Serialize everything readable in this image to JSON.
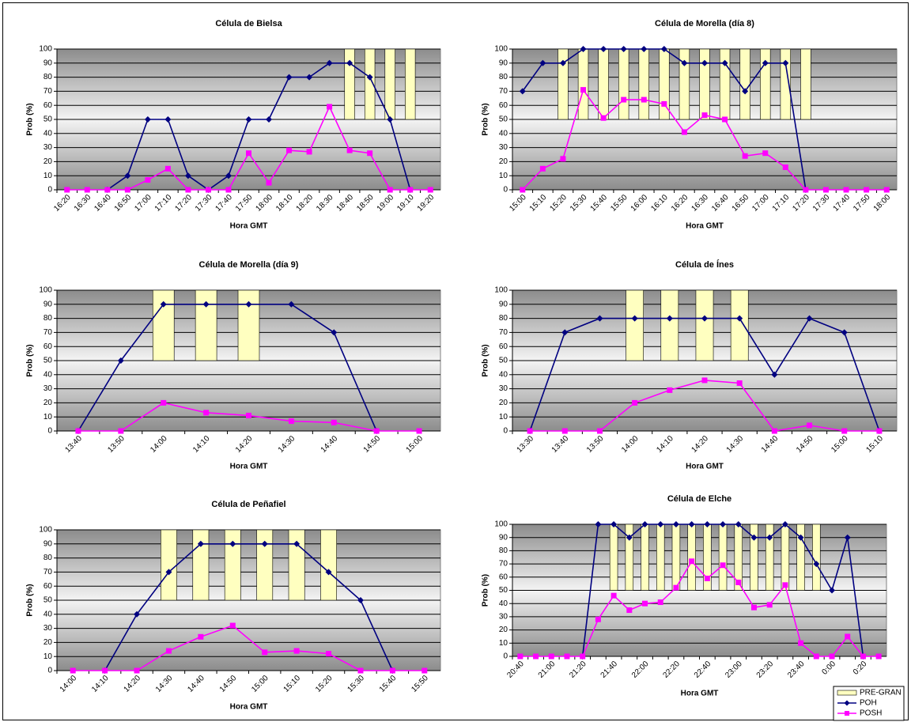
{
  "chart_data": [
    {
      "type": "line",
      "title": "Célula de Bielsa",
      "x_label": "Hora GMT",
      "y_label": "Prob (%)",
      "categories": [
        "16:20",
        "16:30",
        "16:40",
        "16:50",
        "17:00",
        "17:10",
        "17:20",
        "17:30",
        "17:40",
        "17:50",
        "18:00",
        "18:10",
        "18:20",
        "18:30",
        "18:40",
        "18:50",
        "19:00",
        "19:10",
        "19:20"
      ],
      "ylim": [
        0,
        100
      ],
      "yticks": [
        0,
        10,
        20,
        30,
        40,
        50,
        60,
        70,
        80,
        90,
        100
      ],
      "grid": true,
      "series": [
        {
          "name": "PRE-GRAN",
          "type": "bar",
          "color": "#ffffc0",
          "base": 50,
          "values": [
            null,
            null,
            null,
            null,
            null,
            null,
            null,
            null,
            null,
            null,
            null,
            null,
            null,
            null,
            100,
            100,
            100,
            100,
            null
          ]
        },
        {
          "name": "POH",
          "type": "line",
          "marker": "diamond",
          "color": "#000080",
          "values": [
            null,
            null,
            0,
            10,
            50,
            50,
            10,
            0,
            10,
            50,
            50,
            80,
            80,
            90,
            90,
            80,
            50,
            0,
            null
          ]
        },
        {
          "name": "POSH",
          "type": "line",
          "marker": "square",
          "color": "#ff00ff",
          "values": [
            0,
            0,
            0,
            0,
            7,
            15,
            0,
            0,
            0,
            26,
            5,
            28,
            27,
            59,
            28,
            26,
            0,
            0,
            0
          ]
        }
      ]
    },
    {
      "type": "line",
      "title": "Célula de Morella (día 8)",
      "x_label": "Hora GMT",
      "y_label": "Prob (%)",
      "categories": [
        "15:00",
        "15:10",
        "15:20",
        "15:30",
        "15:40",
        "15:50",
        "16:00",
        "16:10",
        "16:20",
        "16:30",
        "16:40",
        "16:50",
        "17:00",
        "17:10",
        "17:20",
        "17:30",
        "17:40",
        "17:50",
        "18:00"
      ],
      "ylim": [
        0,
        100
      ],
      "yticks": [
        0,
        10,
        20,
        30,
        40,
        50,
        60,
        70,
        80,
        90,
        100
      ],
      "grid": true,
      "series": [
        {
          "name": "PRE-GRAN",
          "type": "bar",
          "color": "#ffffc0",
          "base": 50,
          "values": [
            null,
            null,
            100,
            100,
            100,
            100,
            100,
            100,
            100,
            100,
            100,
            100,
            100,
            100,
            100,
            null,
            null,
            null,
            null
          ]
        },
        {
          "name": "POH",
          "type": "line",
          "marker": "diamond",
          "color": "#000080",
          "values": [
            70,
            90,
            90,
            100,
            100,
            100,
            100,
            100,
            90,
            90,
            90,
            70,
            90,
            90,
            0,
            null,
            null,
            null,
            null
          ]
        },
        {
          "name": "POSH",
          "type": "line",
          "marker": "square",
          "color": "#ff00ff",
          "values": [
            0,
            15,
            22,
            71,
            51,
            64,
            64,
            61,
            41,
            53,
            50,
            24,
            26,
            16,
            0,
            0,
            0,
            0,
            0
          ]
        }
      ]
    },
    {
      "type": "line",
      "title": "Célula de Morella (día 9)",
      "x_label": "Hora GMT",
      "y_label": "Prob (%)",
      "categories": [
        "13:40",
        "13:50",
        "14:00",
        "14:10",
        "14:20",
        "14:30",
        "14:40",
        "14:50",
        "15:00"
      ],
      "ylim": [
        0,
        100
      ],
      "yticks": [
        0,
        10,
        20,
        30,
        40,
        50,
        60,
        70,
        80,
        90,
        100
      ],
      "grid": true,
      "series": [
        {
          "name": "PRE-GRAN",
          "type": "bar",
          "color": "#ffffc0",
          "base": 50,
          "values": [
            null,
            null,
            100,
            100,
            100,
            null,
            null,
            null,
            null
          ]
        },
        {
          "name": "POH",
          "type": "line",
          "marker": "diamond",
          "color": "#000080",
          "values": [
            0,
            50,
            90,
            90,
            90,
            90,
            70,
            0,
            null
          ]
        },
        {
          "name": "POSH",
          "type": "line",
          "marker": "square",
          "color": "#ff00ff",
          "values": [
            0,
            0,
            20,
            13,
            11,
            7,
            6,
            0,
            0
          ]
        }
      ]
    },
    {
      "type": "line",
      "title": "Célula de Ínes",
      "x_label": "Hora GMT",
      "y_label": "Prob (%)",
      "categories": [
        "13:30",
        "13:40",
        "13:50",
        "14:00",
        "14:10",
        "14:20",
        "14:30",
        "14:40",
        "14:50",
        "15:00",
        "15:10"
      ],
      "ylim": [
        0,
        100
      ],
      "yticks": [
        0,
        10,
        20,
        30,
        40,
        50,
        60,
        70,
        80,
        90,
        100
      ],
      "grid": true,
      "series": [
        {
          "name": "PRE-GRAN",
          "type": "bar",
          "color": "#ffffc0",
          "base": 50,
          "values": [
            null,
            null,
            null,
            100,
            100,
            100,
            100,
            null,
            null,
            null,
            null
          ]
        },
        {
          "name": "POH",
          "type": "line",
          "marker": "diamond",
          "color": "#000080",
          "values": [
            0,
            70,
            80,
            80,
            80,
            80,
            80,
            40,
            80,
            70,
            0
          ]
        },
        {
          "name": "POSH",
          "type": "line",
          "marker": "square",
          "color": "#ff00ff",
          "values": [
            0,
            0,
            0,
            20,
            29,
            36,
            34,
            0,
            4,
            0,
            0
          ]
        }
      ]
    },
    {
      "type": "line",
      "title": "Célula de Peñafiel",
      "x_label": "Hora GMT",
      "y_label": "Prob (%)",
      "categories": [
        "14:00",
        "14:10",
        "14:20",
        "14:30",
        "14:40",
        "14:50",
        "15:00",
        "15:10",
        "15:20",
        "15:30",
        "15:40",
        "15:50"
      ],
      "ylim": [
        0,
        100
      ],
      "yticks": [
        0,
        10,
        20,
        30,
        40,
        50,
        60,
        70,
        80,
        90,
        100
      ],
      "grid": true,
      "series": [
        {
          "name": "PRE-GRAN",
          "type": "bar",
          "color": "#ffffc0",
          "base": 50,
          "values": [
            null,
            null,
            null,
            100,
            100,
            100,
            100,
            100,
            100,
            null,
            null,
            null
          ]
        },
        {
          "name": "POH",
          "type": "line",
          "marker": "diamond",
          "color": "#000080",
          "values": [
            null,
            0,
            40,
            70,
            90,
            90,
            90,
            90,
            70,
            50,
            0,
            null
          ]
        },
        {
          "name": "POSH",
          "type": "line",
          "marker": "square",
          "color": "#ff00ff",
          "values": [
            0,
            0,
            0,
            14,
            24,
            32,
            13,
            14,
            12,
            0,
            0,
            0
          ]
        }
      ]
    },
    {
      "type": "line",
      "title": "Célula de Elche",
      "x_label": "Hora GMT",
      "y_label": "Prob (%)",
      "categories": [
        "20:40",
        null,
        "21:00",
        null,
        "21:20",
        null,
        "21:40",
        null,
        "22:00",
        null,
        "22:20",
        null,
        "22:40",
        null,
        "23:00",
        null,
        "23:20",
        null,
        "23:40",
        null,
        "0:00",
        null,
        "0:20",
        null
      ],
      "ylim": [
        0,
        100
      ],
      "yticks": [
        0,
        10,
        20,
        30,
        40,
        50,
        60,
        70,
        80,
        90,
        100
      ],
      "grid": true,
      "legend": "bottom-right",
      "series": [
        {
          "name": "PRE-GRAN",
          "type": "bar",
          "color": "#ffffc0",
          "base": 50,
          "values": [
            null,
            null,
            null,
            null,
            null,
            null,
            100,
            100,
            100,
            100,
            100,
            100,
            100,
            100,
            100,
            100,
            100,
            100,
            100,
            100,
            null,
            null,
            null,
            null
          ]
        },
        {
          "name": "POH",
          "type": "line",
          "marker": "diamond",
          "color": "#000080",
          "values": [
            null,
            null,
            null,
            null,
            0,
            100,
            100,
            90,
            100,
            100,
            100,
            100,
            100,
            100,
            100,
            90,
            90,
            100,
            90,
            70,
            50,
            90,
            0,
            null
          ]
        },
        {
          "name": "POSH",
          "type": "line",
          "marker": "square",
          "color": "#ff00ff",
          "values": [
            0,
            0,
            0,
            0,
            0,
            28,
            46,
            35,
            40,
            41,
            52,
            72,
            59,
            69,
            56,
            37,
            39,
            54,
            10,
            0,
            0,
            15,
            0,
            0
          ]
        }
      ]
    }
  ]
}
